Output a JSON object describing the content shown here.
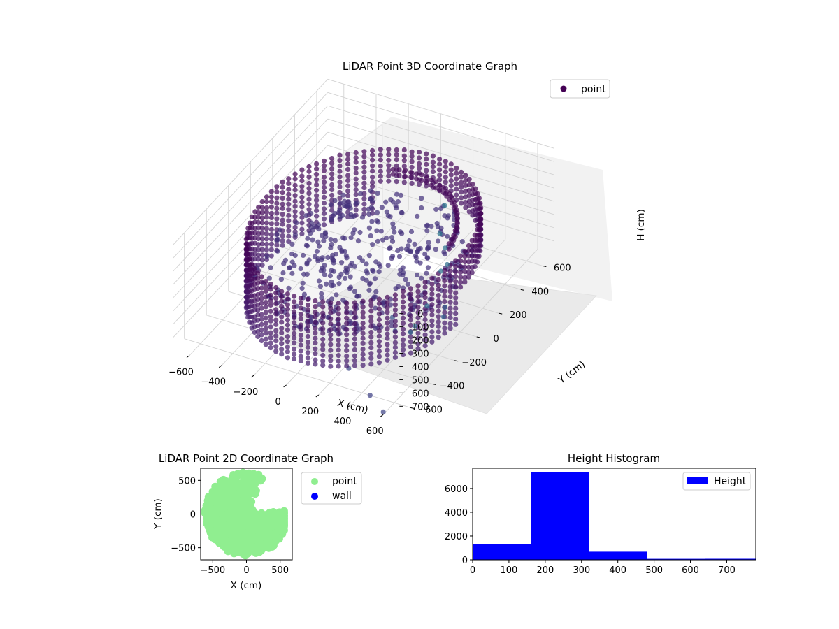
{
  "chart_data": [
    {
      "type": "scatter",
      "title": "LiDAR Point 3D Coordinate Graph",
      "xlabel": "X (cm)",
      "ylabel": "Y (cm)",
      "zlabel": "H (cm)",
      "xlim": [
        -700,
        700
      ],
      "ylim": [
        -700,
        700
      ],
      "zlim": [
        0,
        800
      ],
      "z_inverted": true,
      "xticks": [
        -600,
        -400,
        -200,
        0,
        200,
        400,
        600
      ],
      "yticks": [
        -600,
        -400,
        -200,
        0,
        200,
        400,
        600
      ],
      "zticks": [
        0,
        100,
        200,
        300,
        400,
        500,
        600,
        700
      ],
      "legend": [
        "point"
      ],
      "legend_position": "upper-right",
      "grid": true,
      "colormap": "viridis",
      "structure": {
        "rings": [
          {
            "radius": 600,
            "h_min": 220,
            "h_max": 720,
            "ang_from": 0,
            "ang_to": 360,
            "arc_from": 120,
            "arc_to": 430
          },
          {
            "radius": 480,
            "h_min": 250,
            "h_max": 330,
            "ang_from": 10,
            "ang_to": 110
          }
        ],
        "floor_height": 480,
        "outliers": [
          {
            "x": 420,
            "y": 120,
            "h": 20
          },
          {
            "x": 500,
            "y": -40,
            "h": 60
          },
          {
            "x": 560,
            "y": -80,
            "h": 110
          },
          {
            "x": 620,
            "y": -150,
            "h": 150
          },
          {
            "x": 650,
            "y": -250,
            "h": 100
          },
          {
            "x": 700,
            "y": -600,
            "h": 230
          },
          {
            "x": 680,
            "y": -420,
            "h": 200
          },
          {
            "x": 660,
            "y": -500,
            "h": 290
          },
          {
            "x": 700,
            "y": -300,
            "h": 380
          },
          {
            "x": 640,
            "y": -200,
            "h": 420
          },
          {
            "x": 400,
            "y": -300,
            "h": 600
          },
          {
            "x": 350,
            "y": -250,
            "h": 560
          },
          {
            "x": 250,
            "y": -500,
            "h": 760
          },
          {
            "x": 450,
            "y": -600,
            "h": 800
          },
          {
            "x": 600,
            "y": -700,
            "h": 780
          }
        ]
      }
    },
    {
      "type": "scatter",
      "title": "LiDAR Point 2D Coordinate Graph",
      "xlabel": "X (cm)",
      "ylabel": "Y (cm)",
      "xlim": [
        -680,
        680
      ],
      "ylim": [
        -680,
        680
      ],
      "xticks": [
        -500,
        0,
        500
      ],
      "yticks": [
        -500,
        0,
        500
      ],
      "legend_position": "outside-right",
      "series": [
        {
          "name": "point",
          "color": "#90ee90",
          "shape": {
            "disk_radius": 620,
            "clip_x_max": 560,
            "notch_from_deg": 5,
            "notch_to_deg": 65,
            "notch_radius": 120
          }
        },
        {
          "name": "wall",
          "color": "#0000ff",
          "count": 0
        }
      ]
    },
    {
      "type": "bar",
      "title": "Height Histogram",
      "xlim": [
        0,
        780
      ],
      "ylim": [
        0,
        7700
      ],
      "xticks": [
        0,
        100,
        200,
        300,
        400,
        500,
        600,
        700
      ],
      "yticks": [
        0,
        2000,
        4000,
        6000
      ],
      "legend_position": "upper-right",
      "series": [
        {
          "name": "Height",
          "color": "#0000ff",
          "bins": [
            0,
            160,
            320,
            480,
            640,
            800
          ],
          "counts": [
            1300,
            7350,
            680,
            80,
            90
          ]
        }
      ]
    }
  ]
}
